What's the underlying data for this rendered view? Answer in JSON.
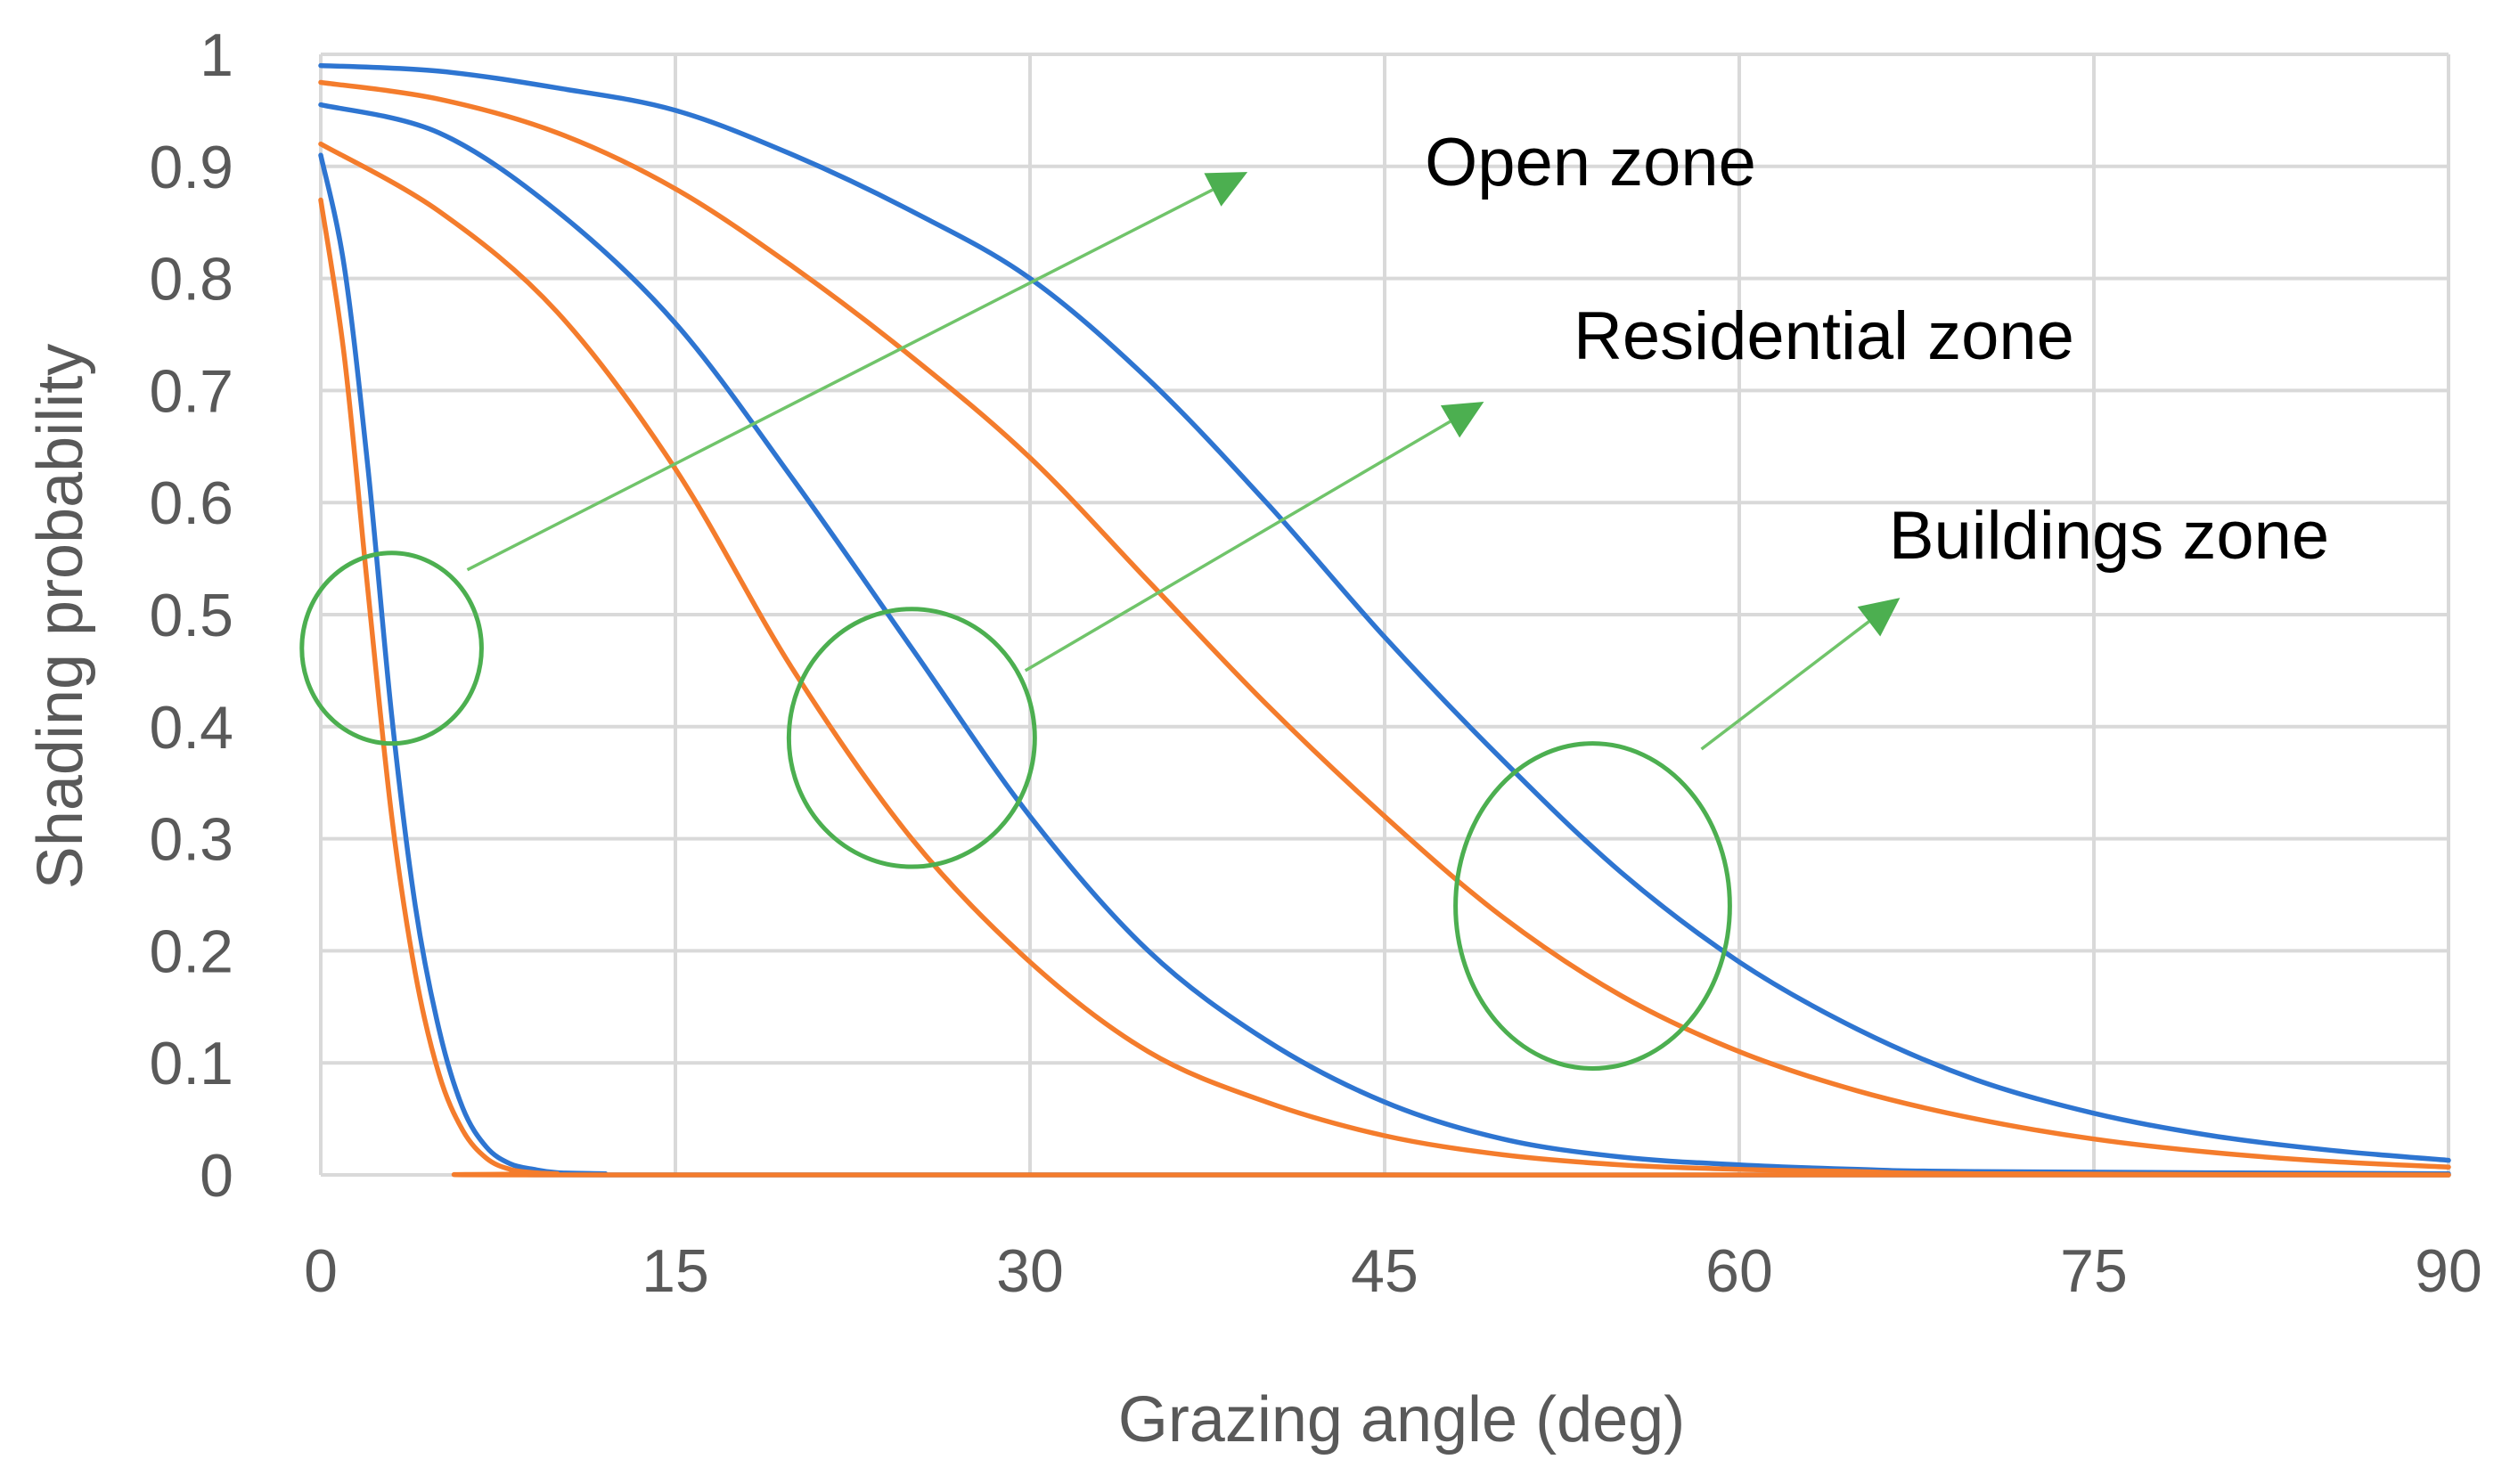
{
  "chart_data": {
    "type": "line",
    "xlabel": "Grazing angle (deg)",
    "ylabel": "Shading probability",
    "xlim": [
      0,
      90
    ],
    "ylim": [
      0,
      1
    ],
    "x_ticks": [
      0,
      15,
      30,
      45,
      60,
      75,
      90
    ],
    "y_ticks": [
      0,
      0.1,
      0.2,
      0.3,
      0.4,
      0.5,
      0.6,
      0.7,
      0.8,
      0.9,
      1
    ],
    "grid": true,
    "colors": {
      "blue": "#2e75d1",
      "orange": "#f47c2c",
      "annotation": "#4caf50"
    },
    "series": [
      {
        "group": "Open zone",
        "color": "blue",
        "x": [
          0,
          1,
          2,
          3,
          4,
          5,
          6,
          7,
          8,
          9,
          10,
          12,
          15,
          90
        ],
        "y": [
          0.91,
          0.81,
          0.63,
          0.41,
          0.24,
          0.13,
          0.06,
          0.025,
          0.01,
          0.005,
          0.002,
          0.001,
          0,
          0
        ]
      },
      {
        "group": "Open zone",
        "color": "orange",
        "x": [
          0,
          1,
          2,
          3,
          4,
          5,
          6,
          7,
          8,
          9,
          10,
          12,
          90
        ],
        "y": [
          0.87,
          0.73,
          0.52,
          0.32,
          0.18,
          0.09,
          0.04,
          0.015,
          0.005,
          0.002,
          0.001,
          0,
          0
        ]
      },
      {
        "group": "Residential zone",
        "color": "blue",
        "x": [
          0,
          5,
          10,
          15,
          20,
          25,
          30,
          35,
          40,
          45,
          50,
          55,
          60,
          65,
          70,
          90
        ],
        "y": [
          0.955,
          0.93,
          0.86,
          0.76,
          0.62,
          0.47,
          0.32,
          0.2,
          0.12,
          0.065,
          0.032,
          0.016,
          0.009,
          0.005,
          0.003,
          0.001
        ]
      },
      {
        "group": "Residential zone",
        "color": "orange",
        "x": [
          0,
          5,
          10,
          15,
          20,
          25,
          30,
          35,
          40,
          45,
          50,
          55,
          60,
          65,
          70,
          90
        ],
        "y": [
          0.92,
          0.86,
          0.77,
          0.63,
          0.45,
          0.3,
          0.19,
          0.11,
          0.065,
          0.035,
          0.018,
          0.009,
          0.005,
          0.003,
          0.001,
          0
        ]
      },
      {
        "group": "Buildings zone",
        "color": "blue",
        "x": [
          0,
          5,
          10,
          15,
          20,
          25,
          30,
          35,
          40,
          45,
          50,
          55,
          60,
          65,
          70,
          75,
          80,
          85,
          90
        ],
        "y": [
          0.99,
          0.985,
          0.97,
          0.95,
          0.91,
          0.86,
          0.8,
          0.71,
          0.6,
          0.48,
          0.37,
          0.27,
          0.19,
          0.13,
          0.085,
          0.055,
          0.035,
          0.022,
          0.013
        ]
      },
      {
        "group": "Buildings zone",
        "color": "orange",
        "x": [
          0,
          5,
          10,
          15,
          20,
          25,
          30,
          35,
          40,
          45,
          50,
          55,
          60,
          65,
          70,
          75,
          80,
          85,
          90
        ],
        "y": [
          0.975,
          0.96,
          0.93,
          0.88,
          0.81,
          0.73,
          0.64,
          0.53,
          0.42,
          0.32,
          0.23,
          0.16,
          0.11,
          0.075,
          0.05,
          0.032,
          0.02,
          0.012,
          0.007
        ]
      }
    ],
    "annotations": [
      {
        "text": "Open zone",
        "ellipse": {
          "cx": 3.0,
          "cy": 0.47,
          "rx": 3.8,
          "ry": 0.085
        },
        "arrow": {
          "x1": 6.2,
          "y1": 0.54,
          "x2": 39.2,
          "y2": 0.895
        }
      },
      {
        "text": "Residential zone",
        "ellipse": {
          "cx": 25.0,
          "cy": 0.39,
          "rx": 5.2,
          "ry": 0.115
        },
        "arrow": {
          "x1": 29.8,
          "y1": 0.45,
          "x2": 49.2,
          "y2": 0.69
        }
      },
      {
        "text": "Buildings zone",
        "ellipse": {
          "cx": 53.8,
          "cy": 0.24,
          "rx": 5.8,
          "ry": 0.145
        },
        "arrow": {
          "x1": 58.4,
          "y1": 0.38,
          "x2": 66.8,
          "y2": 0.515
        }
      }
    ]
  }
}
